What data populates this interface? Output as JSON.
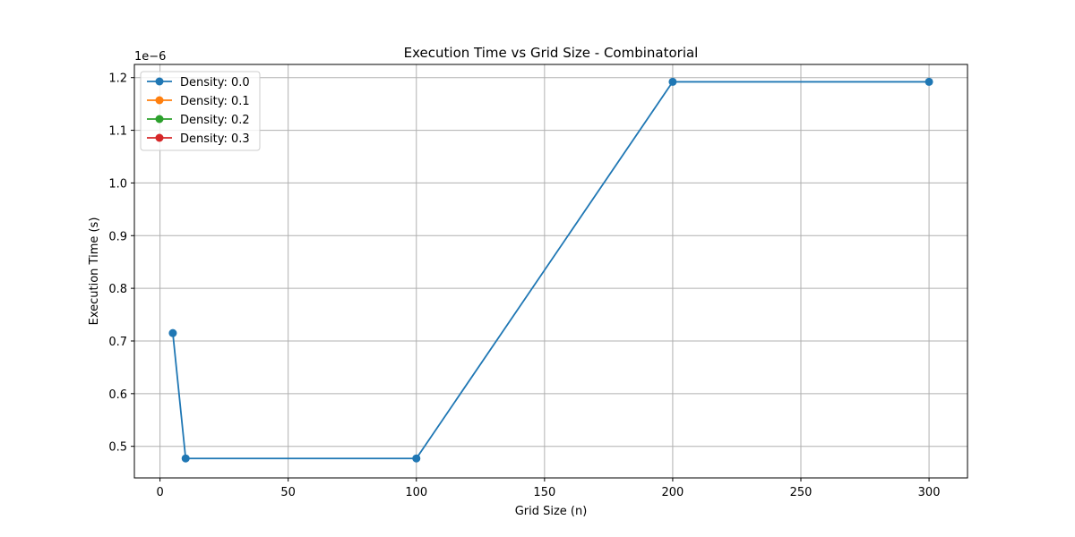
{
  "chart_data": {
    "type": "line",
    "title": "Execution Time vs Grid Size - Combinatorial",
    "xlabel": "Grid Size (n)",
    "ylabel": "Execution Time (s)",
    "offset_text": "1e−6",
    "xlim": [
      -10,
      315
    ],
    "ylim": [
      0.44,
      1.225
    ],
    "x_ticks": [
      0,
      50,
      100,
      150,
      200,
      250,
      300
    ],
    "y_ticks": [
      0.5,
      0.6,
      0.7,
      0.8,
      0.9,
      1.0,
      1.1,
      1.2
    ],
    "y_tick_labels": [
      "0.5",
      "0.6",
      "0.7",
      "0.8",
      "0.9",
      "1.0",
      "1.1",
      "1.2"
    ],
    "grid": true,
    "legend_position": "top-left",
    "series": [
      {
        "name": "Density: 0.0",
        "color": "#1f77b4",
        "x": [
          5,
          10,
          100,
          200,
          300
        ],
        "y": [
          0.715,
          0.477,
          0.477,
          1.192,
          1.192
        ]
      },
      {
        "name": "Density: 0.1",
        "color": "#ff7f0e",
        "x": [],
        "y": []
      },
      {
        "name": "Density: 0.2",
        "color": "#2ca02c",
        "x": [],
        "y": []
      },
      {
        "name": "Density: 0.3",
        "color": "#d62728",
        "x": [],
        "y": []
      }
    ]
  }
}
